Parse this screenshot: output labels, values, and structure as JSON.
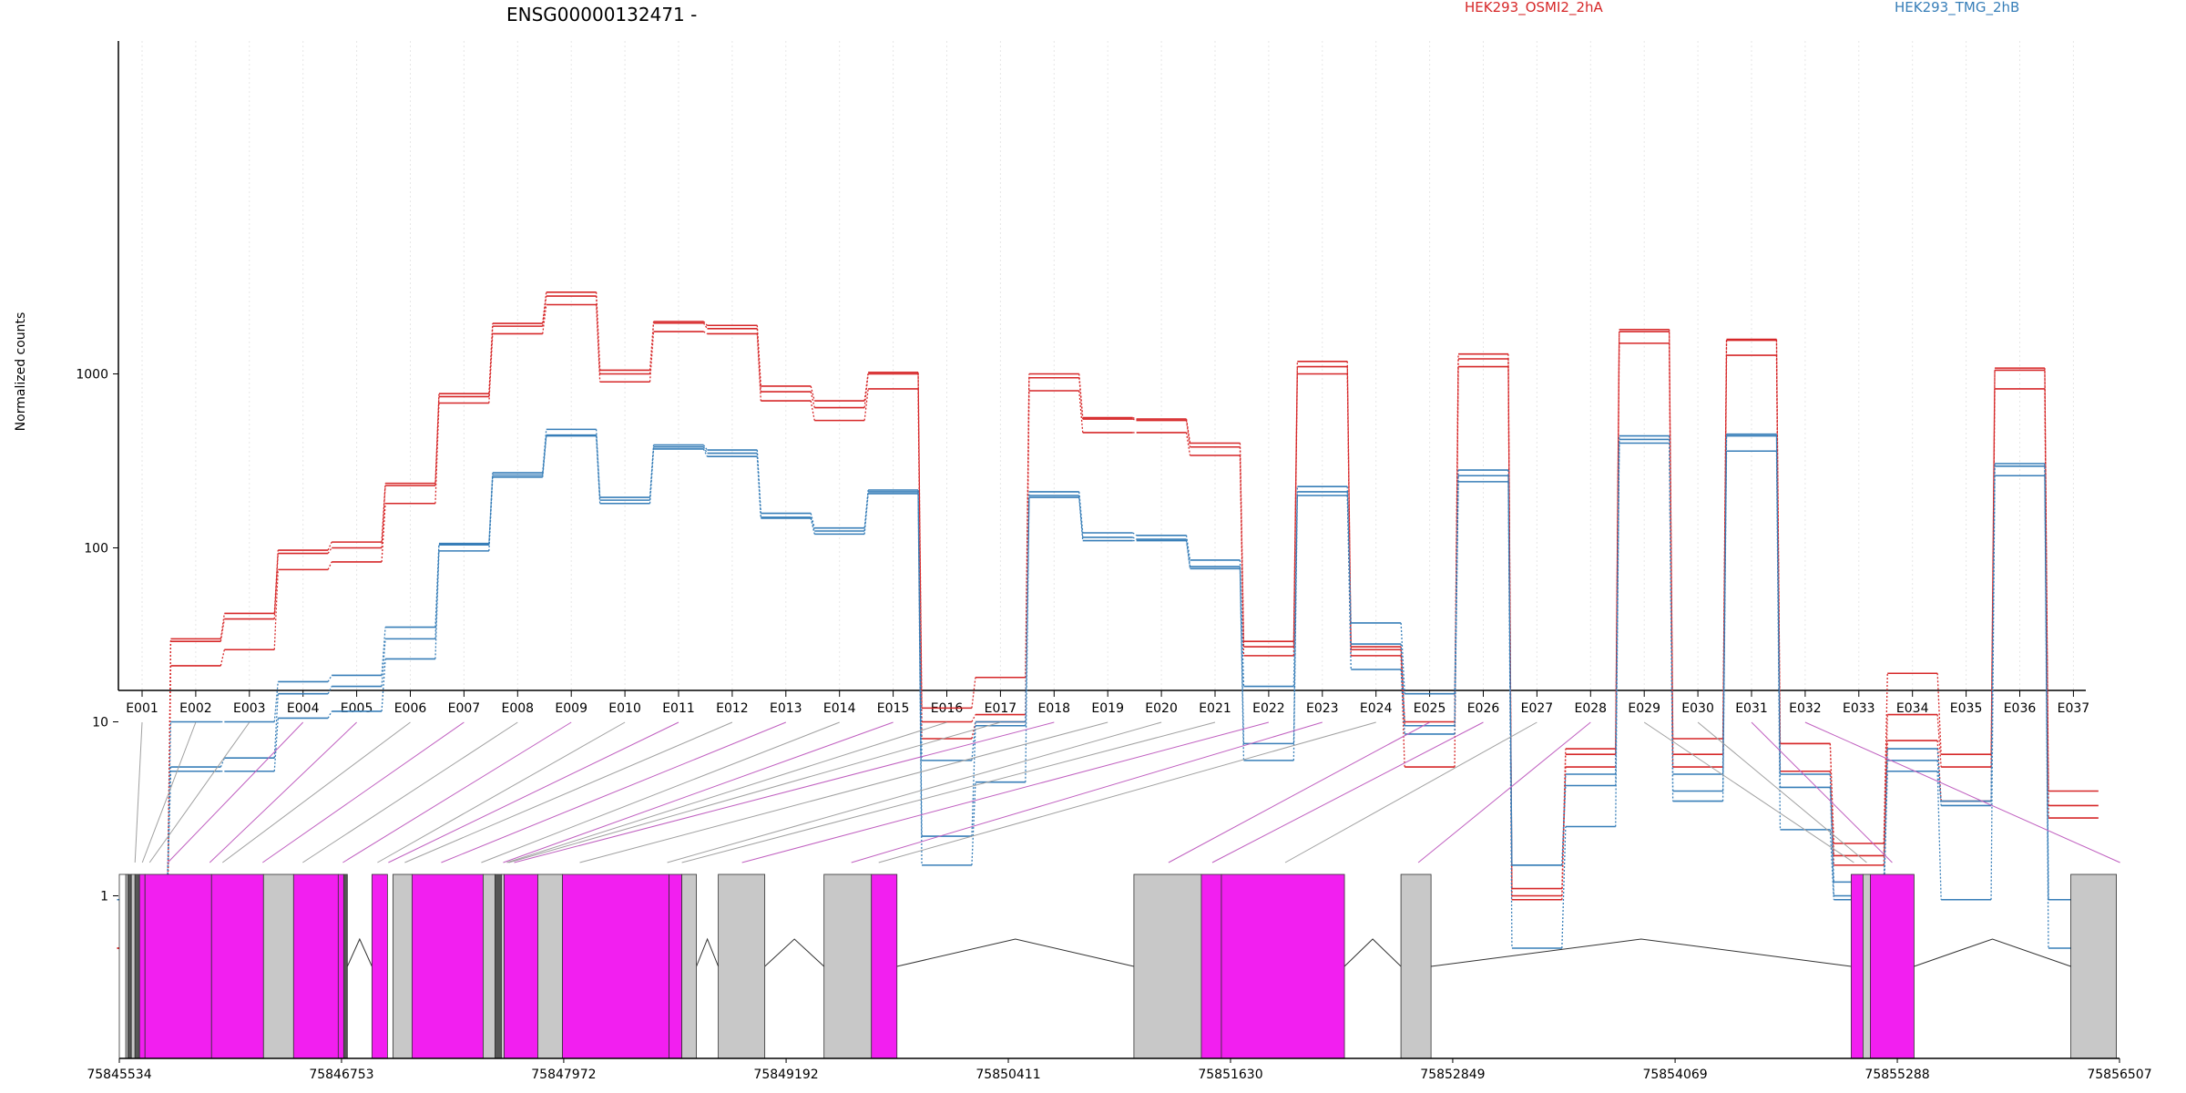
{
  "chart_data": {
    "type": "line",
    "title": "ENSG00000132471 -",
    "ylabel": "Normalized counts",
    "xlabel": "",
    "y_scale": "log",
    "y_ticks": [
      1,
      10,
      100,
      1000
    ],
    "y_tick_labels": [
      "1",
      "10",
      "100",
      "1000"
    ],
    "ylim": [
      0.5,
      4000
    ],
    "grid": "vertical dotted lines at exon positions",
    "legend": [
      {
        "name": "HEK293_OSMI2_2hA",
        "color": "#d62728"
      },
      {
        "name": "HEK293_TMG_2hB",
        "color": "#377eb8"
      }
    ],
    "categories": [
      "E001",
      "E002",
      "E003",
      "E004",
      "E005",
      "E006",
      "E007",
      "E008",
      "E009",
      "E010",
      "E011",
      "E012",
      "E013",
      "E014",
      "E015",
      "E016",
      "E017",
      "E018",
      "E019",
      "E020",
      "E021",
      "E022",
      "E023",
      "E024",
      "E025",
      "E026",
      "E027",
      "E028",
      "E029",
      "E030",
      "E031",
      "E032",
      "E033",
      "E034",
      "E035",
      "E036",
      "E037"
    ],
    "series": [
      {
        "group": "HEK293_OSMI2_2hA",
        "color": "#d62728",
        "values": [
          0.5,
          30,
          42,
          97,
          108,
          235,
          770,
          1950,
          2950,
          1050,
          2000,
          1900,
          850,
          700,
          1020,
          12,
          18,
          1000,
          560,
          550,
          400,
          29,
          1180,
          27,
          10,
          1300,
          1.1,
          7,
          1800,
          8,
          1580,
          7.5,
          2,
          19,
          6.5,
          1080,
          4
        ]
      },
      {
        "group": "HEK293_OSMI2_2hA",
        "color": "#d62728",
        "values": [
          0.5,
          29,
          39,
          93,
          100,
          228,
          740,
          1880,
          2800,
          1000,
          1960,
          1820,
          790,
          640,
          1000,
          10,
          11,
          950,
          550,
          540,
          380,
          27,
          1100,
          26,
          9.5,
          1220,
          1,
          6.5,
          1750,
          6.5,
          1560,
          7.5,
          1.7,
          11,
          5.5,
          1050,
          3.3
        ]
      },
      {
        "group": "HEK293_OSMI2_2hA",
        "color": "#d62728",
        "values": [
          0.5,
          21,
          26,
          75,
          83,
          180,
          680,
          1700,
          2500,
          900,
          1750,
          1700,
          700,
          540,
          820,
          8,
          10,
          800,
          460,
          460,
          340,
          24,
          1000,
          24,
          5.5,
          1100,
          0.95,
          5.5,
          1500,
          5.5,
          1280,
          5.2,
          1.5,
          7.8,
          3.5,
          820,
          2.8
        ]
      },
      {
        "group": "HEK293_TMG_2hB",
        "color": "#377eb8",
        "values": [
          0.95,
          10,
          10,
          17,
          18.5,
          35,
          106,
          270,
          480,
          195,
          390,
          365,
          158,
          130,
          215,
          6,
          10,
          210,
          122,
          118,
          85,
          16,
          225,
          37,
          14.5,
          280,
          1.5,
          5,
          440,
          5,
          450,
          5,
          1.2,
          7,
          3.5,
          305,
          0.95
        ]
      },
      {
        "group": "HEK293_TMG_2hB",
        "color": "#377eb8",
        "values": [
          0.95,
          5.5,
          6.2,
          14.5,
          16,
          30,
          104,
          262,
          445,
          188,
          380,
          350,
          150,
          125,
          210,
          2.2,
          9.5,
          200,
          115,
          112,
          78,
          7.5,
          210,
          28,
          9.5,
          260,
          1.5,
          4.3,
          420,
          4,
          440,
          4.2,
          1,
          6,
          3.3,
          295,
          0.95
        ]
      },
      {
        "group": "HEK293_TMG_2hB",
        "color": "#377eb8",
        "values": [
          0.95,
          5.2,
          5.2,
          10.5,
          11.5,
          23,
          96,
          255,
          440,
          180,
          370,
          335,
          148,
          120,
          205,
          1.5,
          4.5,
          195,
          110,
          110,
          76,
          6,
          200,
          20,
          8.5,
          240,
          0.5,
          2.5,
          400,
          3.5,
          360,
          2.4,
          0.95,
          5.2,
          0.95,
          260,
          0.5
        ]
      }
    ],
    "exon_types": [
      "white",
      "dark",
      "dark",
      "magenta",
      "magenta",
      "gray",
      "magenta",
      "gray",
      "magenta",
      "dark",
      "magenta",
      "gray",
      "magenta",
      "gray",
      "magenta",
      "dark",
      "gray",
      "magenta",
      "gray",
      "gray",
      "gray",
      "magenta",
      "magenta",
      "gray",
      "magenta",
      "magenta",
      "gray",
      "magenta",
      "gray",
      "gray",
      "magenta",
      "magenta",
      "gray",
      "magenta",
      "magenta",
      "gray",
      "gray"
    ],
    "exon_blocks_bp": [
      [
        75845534,
        75845570,
        "white"
      ],
      [
        75845570,
        75845582,
        "gray"
      ],
      [
        75845582,
        75845600,
        "dark"
      ],
      [
        75845600,
        75845620,
        "gray"
      ],
      [
        75845620,
        75845645,
        "dark"
      ],
      [
        75845645,
        75845675,
        "magenta"
      ],
      [
        75845675,
        75846040,
        "magenta"
      ],
      [
        75846040,
        75846325,
        "magenta"
      ],
      [
        75846325,
        75846490,
        "gray"
      ],
      [
        75846490,
        75846735,
        "magenta"
      ],
      [
        75846735,
        75846765,
        "magenta"
      ],
      [
        75846765,
        75846785,
        "dark"
      ],
      [
        75846920,
        75847005,
        "magenta"
      ],
      [
        75847035,
        75847140,
        "gray"
      ],
      [
        75847140,
        75847530,
        "magenta"
      ],
      [
        75847530,
        75847595,
        "gray"
      ],
      [
        75847595,
        75847630,
        "dark"
      ],
      [
        75847630,
        75847645,
        "gray"
      ],
      [
        75847645,
        75847830,
        "magenta"
      ],
      [
        75847830,
        75847965,
        "gray"
      ],
      [
        75847965,
        75848550,
        "magenta"
      ],
      [
        75848550,
        75848620,
        "magenta"
      ],
      [
        75848620,
        75848700,
        "gray"
      ],
      [
        75848820,
        75849075,
        "gray"
      ],
      [
        75849400,
        75849660,
        "gray"
      ],
      [
        75849660,
        75849800,
        "magenta"
      ],
      [
        75851100,
        75851470,
        "gray"
      ],
      [
        75851470,
        75851580,
        "magenta"
      ],
      [
        75851580,
        75852255,
        "magenta"
      ],
      [
        75852565,
        75852730,
        "gray"
      ],
      [
        75855035,
        75855100,
        "magenta"
      ],
      [
        75855100,
        75855140,
        "gray"
      ],
      [
        75855140,
        75855380,
        "magenta"
      ],
      [
        75856240,
        75856490,
        "gray"
      ]
    ],
    "introns_bp": [
      [
        75846785,
        75846920
      ],
      [
        75848700,
        75848820
      ],
      [
        75849075,
        75849400
      ],
      [
        75849800,
        75851100
      ],
      [
        75852255,
        75852565
      ],
      [
        75852730,
        75855035
      ],
      [
        75855380,
        75856240
      ]
    ],
    "connector_targets_bp": [
      75845620,
      75845660,
      75845700,
      75845800,
      75846030,
      75846100,
      75846320,
      75846540,
      75846760,
      75846950,
      75847010,
      75847100,
      75847300,
      75847520,
      75847640,
      75847660,
      75847670,
      75847700,
      75848060,
      75848540,
      75848620,
      75848950,
      75849550,
      75849700,
      75851290,
      75851530,
      75851930,
      75852660,
      75855050,
      75855120,
      75855260,
      75856510
    ],
    "genomic_ticks": [
      75845534,
      75846753,
      75847972,
      75849192,
      75850411,
      75851630,
      75852849,
      75854069,
      75855288,
      75856507
    ],
    "genomic_tick_labels": [
      "75845534",
      "75846753",
      "75847972",
      "75849192",
      "75850411",
      "75851630",
      "75852849",
      "75854069",
      "75855288",
      "75856507"
    ],
    "genomic_range": [
      75845534,
      75856507
    ]
  },
  "colors": {
    "red": "#d62728",
    "blue": "#377eb8",
    "magenta": "#f21ff0",
    "gray": "#c8c8c8",
    "connector_gray": "#a0a0a0",
    "connector_magenta": "#c060c0"
  }
}
